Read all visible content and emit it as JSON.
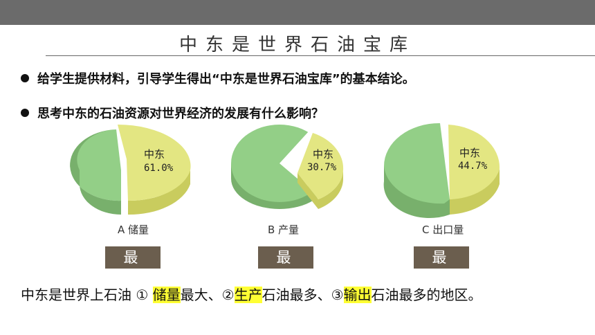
{
  "title": "中东是世界石油宝库",
  "bullets": [
    "给学生提供材料，引导学生得出“中东是世界石油宝库”的基本结论。",
    "思考中东的石油资源对世界经济的发展有什么影响？"
  ],
  "charts": [
    {
      "caption": "A  储量",
      "region": "中东",
      "percent": "61.0%",
      "value": 61.0,
      "tag": "最大"
    },
    {
      "caption": "B  产量",
      "region": "中东",
      "percent": "30.7%",
      "value": 30.7,
      "tag": "最多"
    },
    {
      "caption": "C  出口量",
      "region": "中东",
      "percent": "44.7%",
      "value": 44.7,
      "tag": "最多"
    }
  ],
  "summary": {
    "part1": "中东是世界上石油 ① ",
    "hl1": "储量",
    "part2": "最大、②",
    "hl2": "生产",
    "part3": "石油最多、③",
    "hl3": "输出",
    "part4": "石油最多的地区。"
  },
  "colors": {
    "middle_east": "#e3e682",
    "middle_east_side": "#c9cc5e",
    "rest": "#93cf87",
    "rest_side": "#78b06c",
    "tag_bg": "#6b5e4e",
    "highlight": "#ffff33"
  }
}
